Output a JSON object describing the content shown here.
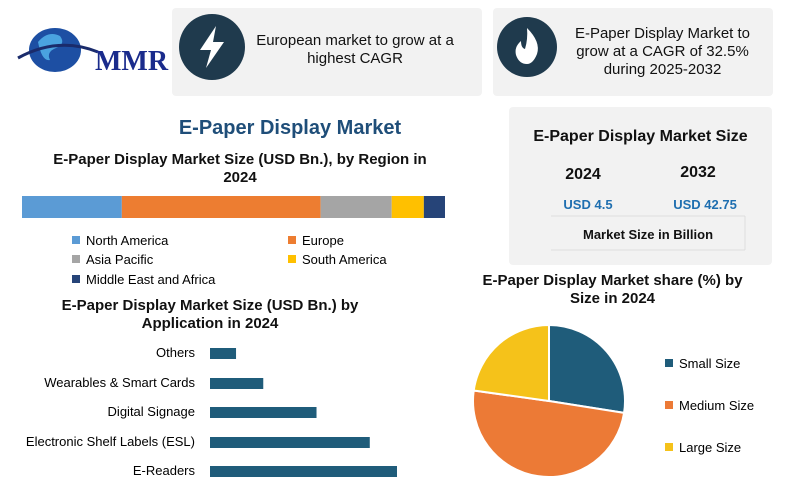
{
  "logo": "MMR",
  "banners": [
    "European market to grow at a highest CAGR",
    "E-Paper Display Market to grow at a CAGR of 32.5% during 2025-2032"
  ],
  "title": "E-Paper Display Market",
  "market_size": {
    "title": "E-Paper Display Market Size",
    "years": [
      "2024",
      "2032"
    ],
    "values": [
      "USD 4.5",
      "USD 42.75"
    ],
    "note": "Market Size in Billion"
  },
  "chart_data": [
    {
      "type": "stacked-bar",
      "title": "E-Paper Display  Market Size (USD Bn.), by Region in 2024",
      "series": [
        {
          "name": "North America",
          "color": "#5b9bd5",
          "values": [
            23.6
          ]
        },
        {
          "name": "Europe",
          "color": "#ed7d31",
          "values": [
            47
          ]
        },
        {
          "name": "Asia Pacific",
          "color": "#a5a5a5",
          "values": [
            16.8
          ]
        },
        {
          "name": "South America",
          "color": "#ffc000",
          "values": [
            7.6
          ]
        },
        {
          "name": "Middle East and Africa",
          "color": "#264478",
          "values": [
            5
          ]
        }
      ]
    },
    {
      "type": "bar",
      "title": "E-Paper Display Market Size (USD Bn.) by Application in 2024",
      "categories": [
        "Others",
        "Wearables & Smart Cards",
        "Digital Signage",
        "Electronic Shelf Labels (ESL)",
        "E-Readers"
      ],
      "values": [
        0.22,
        0.45,
        0.9,
        1.35,
        1.58
      ],
      "color": "#1f5c7a"
    },
    {
      "type": "pie",
      "title": "E-Paper Display Market share (%) by Size in 2024",
      "categories": [
        "Small Size",
        "Medium Size",
        "Large Size"
      ],
      "values": [
        27.5,
        49.7,
        22.8
      ],
      "colors": [
        "#1f5c7a",
        "#ec7a36",
        "#f5c21a"
      ]
    }
  ]
}
